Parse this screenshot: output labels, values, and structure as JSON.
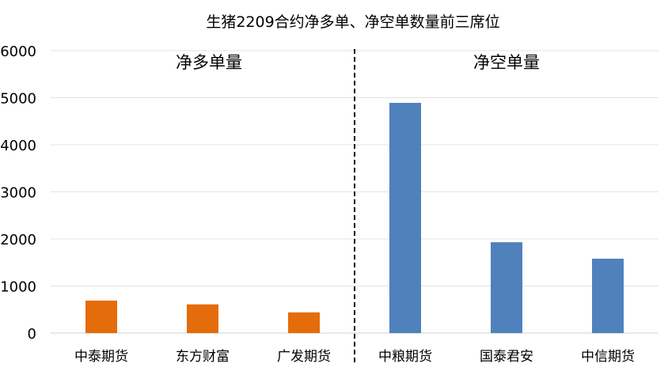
{
  "chart_data": {
    "type": "bar",
    "title": "生猪2209合约净多单、净空单数量前三席位",
    "xlabel": "",
    "ylabel": "",
    "ylim": [
      0,
      6000
    ],
    "yticks": [
      0,
      1000,
      2000,
      3000,
      4000,
      5000,
      6000
    ],
    "grid": true,
    "groups": [
      {
        "label": "净多单量",
        "color": "#E46C0A",
        "categories": [
          "中泰期货",
          "东方财富",
          "广发期货"
        ],
        "values": [
          690,
          610,
          440
        ]
      },
      {
        "label": "净空单量",
        "color": "#4F81BD",
        "categories": [
          "中粮期货",
          "国泰君安",
          "中信期货"
        ],
        "values": [
          4890,
          1930,
          1580
        ]
      }
    ],
    "divider": "dashed vertical line between the two groups"
  }
}
